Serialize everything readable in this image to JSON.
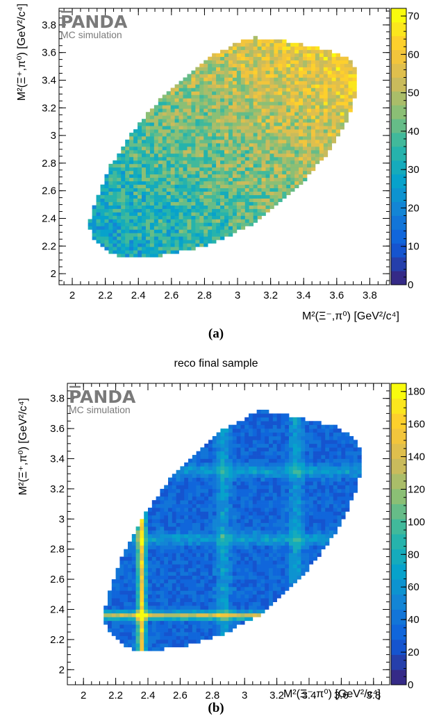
{
  "panels": [
    {
      "caption": "(a)",
      "title": "",
      "logo": "PANDA",
      "logo_sub": "MC simulation",
      "xlabel": "M²(Ξ⁻,π⁰) [GeV²/c⁴]",
      "ylabel": "M²(Ξ⁺,π⁰) [GeV²/c⁴]"
    },
    {
      "caption": "(b)",
      "title": "reco final sample",
      "logo": "PANDA",
      "logo_sub": "MC simulation",
      "xlabel": "M²(Ξ⁻,π⁰) [GeV²/c⁴]",
      "ylabel": "M²(Ξ⁺,π⁰) [GeV²/c⁴]"
    }
  ],
  "chart_data": [
    {
      "type": "heatmap",
      "title": "",
      "xlabel": "M²(Ξ⁻,π⁰) [GeV²/c⁴]",
      "ylabel": "M²(Ξ⁺,π⁰) [GeV²/c⁴]",
      "xlim": [
        1.92,
        3.92
      ],
      "ylim": [
        1.92,
        3.92
      ],
      "x_ticks": [
        "2",
        "2.2",
        "2.4",
        "2.6",
        "2.8",
        "3",
        "3.2",
        "3.4",
        "3.6",
        "3.8"
      ],
      "y_ticks": [
        "2",
        "2.2",
        "2.4",
        "2.6",
        "2.8",
        "3",
        "3.2",
        "3.4",
        "3.6",
        "3.8"
      ],
      "zlim": [
        0,
        72
      ],
      "z_ticks": [
        "0",
        "10",
        "20",
        "30",
        "40",
        "50",
        "60",
        "70"
      ],
      "bins": 80,
      "boundary": {
        "right": [
          [
            2.1,
            2.36
          ],
          [
            2.13,
            2.25
          ],
          [
            2.25,
            2.14
          ],
          [
            2.35,
            2.11
          ],
          [
            2.6,
            2.14
          ],
          [
            2.85,
            2.22
          ],
          [
            3.1,
            2.36
          ],
          [
            3.35,
            2.6
          ],
          [
            3.55,
            2.88
          ],
          [
            3.68,
            3.15
          ],
          [
            3.73,
            3.35
          ],
          [
            3.72,
            3.47
          ],
          [
            3.68,
            3.55
          ],
          [
            3.55,
            3.62
          ],
          [
            3.3,
            3.68
          ],
          [
            3.1,
            3.71
          ]
        ],
        "left": [
          [
            2.1,
            2.36
          ],
          [
            2.15,
            2.55
          ],
          [
            2.22,
            2.76
          ],
          [
            2.35,
            3.0
          ],
          [
            2.5,
            3.22
          ],
          [
            2.68,
            3.43
          ],
          [
            2.85,
            3.58
          ],
          [
            3.0,
            3.67
          ],
          [
            3.1,
            3.71
          ]
        ]
      },
      "density": {
        "base": 42,
        "gradient": "increasing toward upper-right (~25 at lower-left to ~60 at upper-right)",
        "noise_amplitude": 10
      }
    },
    {
      "type": "heatmap",
      "title": "reco final sample",
      "xlabel": "M²(Ξ⁻,π⁰) [GeV²/c⁴]",
      "ylabel": "M²(Ξ⁺,π⁰) [GeV²/c⁴]",
      "xlim": [
        1.9,
        3.9
      ],
      "ylim": [
        1.9,
        3.9
      ],
      "x_ticks": [
        "2",
        "2.2",
        "2.4",
        "2.6",
        "2.8",
        "3",
        "3.2",
        "3.4",
        "3.6",
        "3.8"
      ],
      "y_ticks": [
        "2",
        "2.2",
        "2.4",
        "2.6",
        "2.8",
        "3",
        "3.2",
        "3.4",
        "3.6",
        "3.8"
      ],
      "zlim": [
        0,
        185
      ],
      "z_ticks": [
        "0",
        "20",
        "40",
        "60",
        "80",
        "100",
        "120",
        "140",
        "160",
        "180"
      ],
      "bins": 80,
      "boundary": {
        "right": [
          [
            2.12,
            2.36
          ],
          [
            2.15,
            2.25
          ],
          [
            2.27,
            2.15
          ],
          [
            2.37,
            2.12
          ],
          [
            2.6,
            2.15
          ],
          [
            2.85,
            2.23
          ],
          [
            3.1,
            2.36
          ],
          [
            3.35,
            2.6
          ],
          [
            3.55,
            2.88
          ],
          [
            3.68,
            3.15
          ],
          [
            3.73,
            3.35
          ],
          [
            3.72,
            3.47
          ],
          [
            3.68,
            3.55
          ],
          [
            3.55,
            3.62
          ],
          [
            3.3,
            3.68
          ],
          [
            3.1,
            3.72
          ]
        ],
        "left": [
          [
            2.12,
            2.36
          ],
          [
            2.17,
            2.55
          ],
          [
            2.24,
            2.76
          ],
          [
            2.36,
            3.0
          ],
          [
            2.5,
            3.22
          ],
          [
            2.68,
            3.43
          ],
          [
            2.85,
            3.58
          ],
          [
            3.0,
            3.67
          ],
          [
            3.1,
            3.72
          ]
        ]
      },
      "density": {
        "base": 32,
        "bands": [
          {
            "axis": "x",
            "center": 2.36,
            "value": 180,
            "sigma": 0.018
          },
          {
            "axis": "y",
            "center": 2.36,
            "value": 150,
            "sigma": 0.018
          },
          {
            "axis": "x",
            "center": 2.87,
            "value": 70,
            "sigma": 0.03
          },
          {
            "axis": "y",
            "center": 2.87,
            "value": 70,
            "sigma": 0.03
          },
          {
            "axis": "x",
            "center": 3.32,
            "value": 70,
            "sigma": 0.03
          },
          {
            "axis": "y",
            "center": 3.32,
            "value": 70,
            "sigma": 0.03
          }
        ],
        "noise_amplitude": 12
      }
    }
  ]
}
